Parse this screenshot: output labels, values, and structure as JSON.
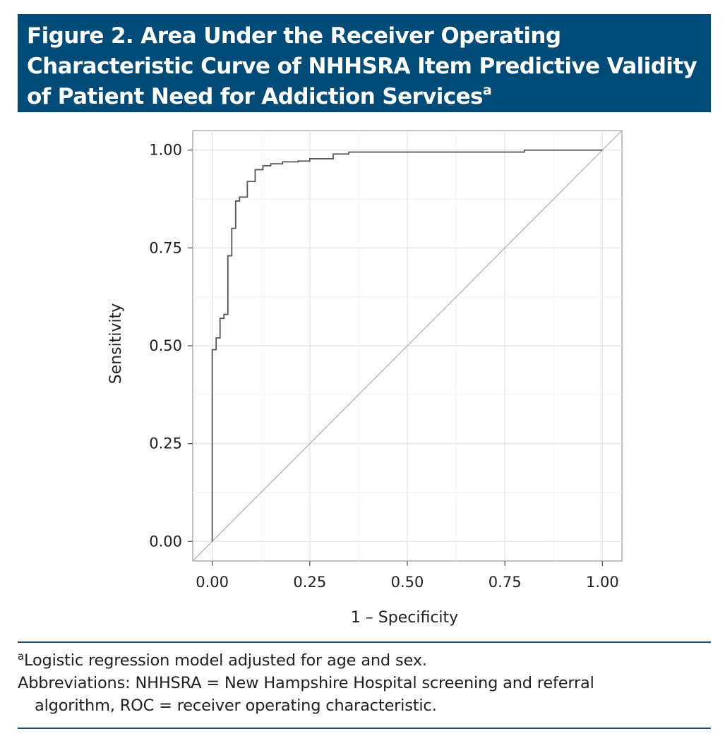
{
  "figure": {
    "title": "Figure 2. Area Under the Receiver Operating Characteristic Curve of NHHSRA Item Predictive Validity of Patient Need for Addiction Services",
    "title_marker": "a"
  },
  "chart_data": {
    "type": "line",
    "xlabel": "1 – Specificity",
    "ylabel": "Sensitivity",
    "xlim": [
      -0.05,
      1.05
    ],
    "ylim": [
      -0.05,
      1.05
    ],
    "x_ticks": [
      "0.00",
      "0.25",
      "0.50",
      "0.75",
      "1.00"
    ],
    "y_ticks": [
      "0.00",
      "0.25",
      "0.50",
      "0.75",
      "1.00"
    ],
    "grid": true,
    "series": [
      {
        "type": "step",
        "x": [
          0.0,
          0.0,
          0.01,
          0.01,
          0.02,
          0.02,
          0.03,
          0.03,
          0.04,
          0.04,
          0.05,
          0.05,
          0.06,
          0.06,
          0.07,
          0.07,
          0.09,
          0.09,
          0.11,
          0.11,
          0.13,
          0.13,
          0.15,
          0.15,
          0.18,
          0.18,
          0.22,
          0.22,
          0.25,
          0.25,
          0.31,
          0.31,
          0.35,
          0.35,
          0.8,
          0.8,
          1.0
        ],
        "y": [
          0.0,
          0.49,
          0.49,
          0.52,
          0.52,
          0.57,
          0.57,
          0.58,
          0.58,
          0.73,
          0.73,
          0.8,
          0.8,
          0.87,
          0.87,
          0.88,
          0.88,
          0.92,
          0.92,
          0.95,
          0.95,
          0.96,
          0.96,
          0.965,
          0.965,
          0.97,
          0.97,
          0.972,
          0.972,
          0.978,
          0.978,
          0.99,
          0.99,
          0.995,
          0.995,
          1.0,
          1.0
        ],
        "color": "#555555"
      },
      {
        "type": "reference",
        "x": [
          -0.05,
          1.05
        ],
        "y": [
          -0.05,
          1.05
        ],
        "color": "#b8b8b8"
      }
    ]
  },
  "footnotes": {
    "marker": "a",
    "note": "Logistic regression model adjusted for age and sex.",
    "abbrev_line1": "Abbreviations: NHHSRA = New Hampshire Hospital screening and referral",
    "abbrev_line2": "algorithm, ROC = receiver operating characteristic."
  }
}
